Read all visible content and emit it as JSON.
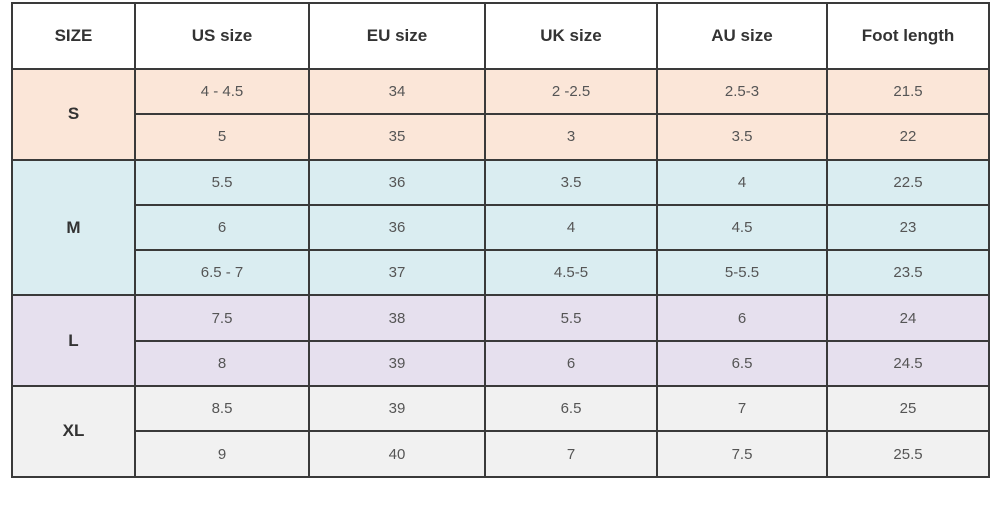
{
  "table": {
    "headers": [
      "SIZE",
      "US size",
      "EU size",
      "UK size",
      "AU size",
      "Foot length"
    ],
    "groups": [
      {
        "size": "S",
        "rows": [
          [
            "4 - 4.5",
            "34",
            "2 -2.5",
            "2.5-3",
            "21.5"
          ],
          [
            "5",
            "35",
            "3",
            "3.5",
            "22"
          ]
        ]
      },
      {
        "size": "M",
        "rows": [
          [
            "5.5",
            "36",
            "3.5",
            "4",
            "22.5"
          ],
          [
            "6",
            "36",
            "4",
            "4.5",
            "23"
          ],
          [
            "6.5 - 7",
            "37",
            "4.5-5",
            "5-5.5",
            "23.5"
          ]
        ]
      },
      {
        "size": "L",
        "rows": [
          [
            "7.5",
            "38",
            "5.5",
            "6",
            "24"
          ],
          [
            "8",
            "39",
            "6",
            "6.5",
            "24.5"
          ]
        ]
      },
      {
        "size": "XL",
        "rows": [
          [
            "8.5",
            "39",
            "6.5",
            "7",
            "25"
          ],
          [
            "9",
            "40",
            "7",
            "7.5",
            "25.5"
          ]
        ]
      }
    ]
  }
}
